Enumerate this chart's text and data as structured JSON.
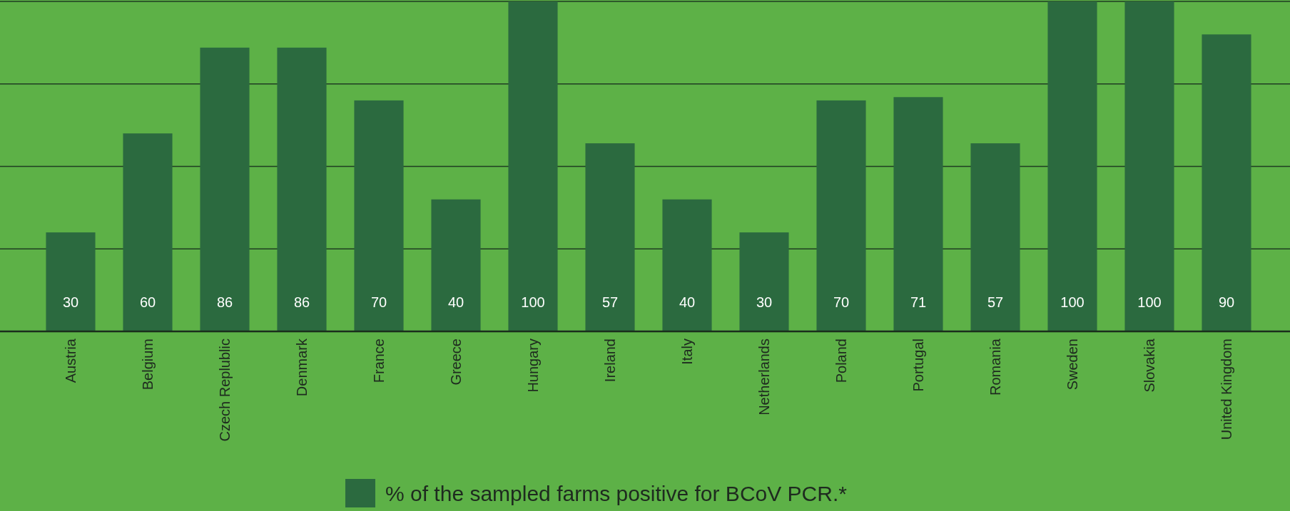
{
  "chart_data": {
    "type": "bar",
    "categories": [
      "Austria",
      "Belgium",
      "Czech Replublic",
      "Denmark",
      "France",
      "Greece",
      "Hungary",
      "Ireland",
      "Italy",
      "Netherlands",
      "Poland",
      "Portugal",
      "Romania",
      "Sweden",
      "Slovakia",
      "United Kingdom"
    ],
    "series": [
      {
        "name": "% of the sampled farms positive for BCoV PCR.*",
        "color": "#2b6a3f",
        "values": [
          30,
          60,
          86,
          86,
          70,
          40,
          100,
          57,
          40,
          30,
          70,
          71,
          57,
          100,
          100,
          90
        ]
      }
    ],
    "ylim": [
      0,
      100
    ],
    "yticks": [
      {
        "value": 25,
        "label": null
      },
      {
        "value": 50,
        "label": null
      },
      {
        "value": 75,
        "label": null
      },
      {
        "value": 100,
        "label": null
      }
    ],
    "grid": "y",
    "data_labels": true,
    "legend": "bottom",
    "tick_labels": "x"
  }
}
